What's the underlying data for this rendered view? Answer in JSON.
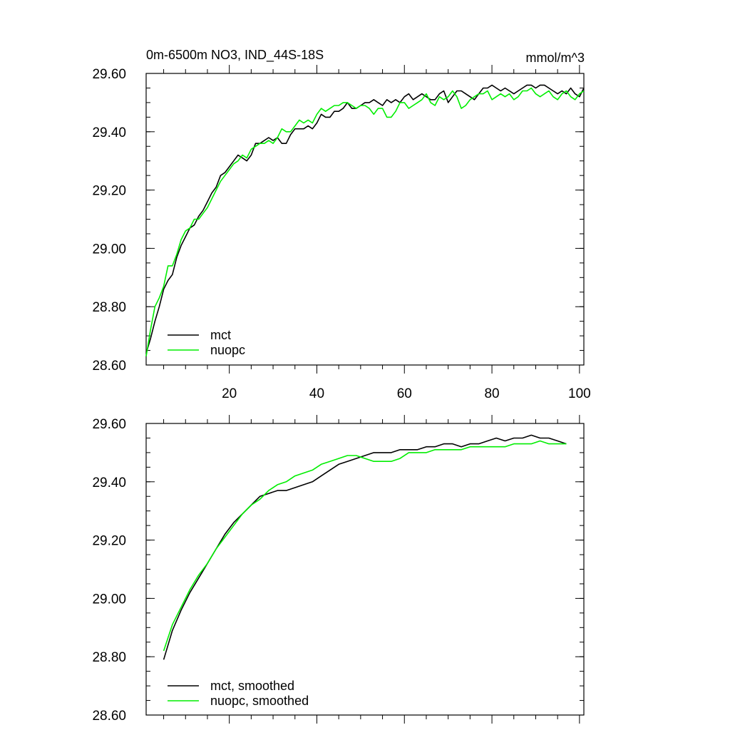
{
  "colors": {
    "mct": "#000000",
    "nuopc": "#00ee00"
  },
  "chart_data": [
    {
      "type": "line",
      "title": "0m-6500m NO3, IND_44S-18S",
      "units": "mmol/m^3",
      "xlim": [
        1,
        101
      ],
      "ylim": [
        28.6,
        29.6
      ],
      "xticks": [
        20,
        40,
        60,
        80,
        100
      ],
      "yticks": [
        28.6,
        28.8,
        29.0,
        29.2,
        29.4,
        29.6
      ],
      "ytick_labels": [
        "28.60",
        "28.80",
        "29.00",
        "29.20",
        "29.40",
        "29.60"
      ],
      "xtick_labels": [
        "20",
        "40",
        "60",
        "80",
        "100"
      ],
      "legend_position": "bottom-left",
      "grid": false,
      "series": [
        {
          "name": "mct",
          "color": "#000000",
          "x": [
            1,
            2,
            3,
            4,
            5,
            6,
            7,
            8,
            9,
            10,
            11,
            12,
            13,
            14,
            15,
            16,
            17,
            18,
            19,
            20,
            21,
            22,
            23,
            24,
            25,
            26,
            27,
            28,
            29,
            30,
            31,
            32,
            33,
            34,
            35,
            36,
            37,
            38,
            39,
            40,
            41,
            42,
            43,
            44,
            45,
            46,
            47,
            48,
            49,
            50,
            51,
            52,
            53,
            54,
            55,
            56,
            57,
            58,
            59,
            60,
            61,
            62,
            63,
            64,
            65,
            66,
            67,
            68,
            69,
            70,
            71,
            72,
            73,
            74,
            75,
            76,
            77,
            78,
            79,
            80,
            81,
            82,
            83,
            84,
            85,
            86,
            87,
            88,
            89,
            90,
            91,
            92,
            93,
            94,
            95,
            96,
            97,
            98,
            99,
            100,
            101
          ],
          "y": [
            28.64,
            28.69,
            28.75,
            28.8,
            28.86,
            28.89,
            28.91,
            28.97,
            29.01,
            29.04,
            29.07,
            29.08,
            29.11,
            29.13,
            29.16,
            29.19,
            29.21,
            29.25,
            29.26,
            29.28,
            29.3,
            29.32,
            29.31,
            29.3,
            29.32,
            29.36,
            29.36,
            29.37,
            29.38,
            29.37,
            29.38,
            29.36,
            29.36,
            29.39,
            29.41,
            29.41,
            29.41,
            29.42,
            29.41,
            29.43,
            29.46,
            29.45,
            29.45,
            29.47,
            29.47,
            29.48,
            29.5,
            29.48,
            29.48,
            29.49,
            29.5,
            29.5,
            29.51,
            29.5,
            29.49,
            29.51,
            29.5,
            29.51,
            29.5,
            29.52,
            29.53,
            29.51,
            29.52,
            29.53,
            29.52,
            29.51,
            29.51,
            29.53,
            29.54,
            29.5,
            29.52,
            29.54,
            29.54,
            29.53,
            29.52,
            29.51,
            29.53,
            29.55,
            29.55,
            29.56,
            29.55,
            29.54,
            29.55,
            29.54,
            29.53,
            29.54,
            29.55,
            29.56,
            29.56,
            29.55,
            29.56,
            29.56,
            29.55,
            29.54,
            29.53,
            29.54,
            29.53,
            29.55,
            29.53,
            29.52,
            29.55
          ]
        },
        {
          "name": "nuopc",
          "color": "#00ee00",
          "x": [
            1,
            2,
            3,
            4,
            5,
            6,
            7,
            8,
            9,
            10,
            11,
            12,
            13,
            14,
            15,
            16,
            17,
            18,
            19,
            20,
            21,
            22,
            23,
            24,
            25,
            26,
            27,
            28,
            29,
            30,
            31,
            32,
            33,
            34,
            35,
            36,
            37,
            38,
            39,
            40,
            41,
            42,
            43,
            44,
            45,
            46,
            47,
            48,
            49,
            50,
            51,
            52,
            53,
            54,
            55,
            56,
            57,
            58,
            59,
            60,
            61,
            62,
            63,
            64,
            65,
            66,
            67,
            68,
            69,
            70,
            71,
            72,
            73,
            74,
            75,
            76,
            77,
            78,
            79,
            80,
            81,
            82,
            83,
            84,
            85,
            86,
            87,
            88,
            89,
            90,
            91,
            92,
            93,
            94,
            95,
            96,
            97,
            98,
            99,
            100,
            101
          ],
          "y": [
            28.63,
            28.72,
            28.8,
            28.83,
            28.87,
            28.94,
            28.94,
            28.98,
            29.03,
            29.06,
            29.07,
            29.1,
            29.1,
            29.12,
            29.14,
            29.17,
            29.2,
            29.23,
            29.25,
            29.27,
            29.29,
            29.3,
            29.32,
            29.31,
            29.34,
            29.35,
            29.36,
            29.36,
            29.37,
            29.36,
            29.38,
            29.41,
            29.4,
            29.4,
            29.42,
            29.44,
            29.43,
            29.44,
            29.43,
            29.46,
            29.48,
            29.47,
            29.48,
            29.49,
            29.49,
            29.5,
            29.5,
            29.49,
            29.48,
            29.49,
            29.49,
            29.48,
            29.46,
            29.48,
            29.48,
            29.45,
            29.45,
            29.47,
            29.5,
            29.5,
            29.48,
            29.49,
            29.5,
            29.51,
            29.53,
            29.5,
            29.49,
            29.52,
            29.51,
            29.52,
            29.54,
            29.52,
            29.48,
            29.49,
            29.51,
            29.52,
            29.53,
            29.53,
            29.54,
            29.51,
            29.52,
            29.53,
            29.52,
            29.53,
            29.51,
            29.52,
            29.54,
            29.54,
            29.55,
            29.53,
            29.52,
            29.53,
            29.54,
            29.52,
            29.51,
            29.53,
            29.54,
            29.52,
            29.51,
            29.53,
            29.54
          ]
        }
      ]
    },
    {
      "type": "line",
      "xlim": [
        1,
        101
      ],
      "ylim": [
        28.6,
        29.6
      ],
      "xticks": [
        20,
        40,
        60,
        80,
        100
      ],
      "yticks": [
        28.6,
        28.8,
        29.0,
        29.2,
        29.4,
        29.6
      ],
      "ytick_labels": [
        "28.60",
        "28.80",
        "29.00",
        "29.20",
        "29.40",
        "29.60"
      ],
      "legend_position": "bottom-left",
      "grid": false,
      "series": [
        {
          "name": "mct, smoothed",
          "color": "#000000",
          "x": [
            5,
            7,
            9,
            11,
            13,
            15,
            17,
            19,
            21,
            23,
            25,
            27,
            29,
            31,
            33,
            35,
            37,
            39,
            41,
            43,
            45,
            47,
            49,
            51,
            53,
            55,
            57,
            59,
            61,
            63,
            65,
            67,
            69,
            71,
            73,
            75,
            77,
            79,
            81,
            83,
            85,
            87,
            89,
            91,
            93,
            95,
            97
          ],
          "y": [
            28.79,
            28.89,
            28.96,
            29.02,
            29.07,
            29.12,
            29.17,
            29.22,
            29.26,
            29.29,
            29.32,
            29.35,
            29.36,
            29.37,
            29.37,
            29.38,
            29.39,
            29.4,
            29.42,
            29.44,
            29.46,
            29.47,
            29.48,
            29.49,
            29.5,
            29.5,
            29.5,
            29.51,
            29.51,
            29.51,
            29.52,
            29.52,
            29.53,
            29.53,
            29.52,
            29.53,
            29.53,
            29.54,
            29.55,
            29.54,
            29.55,
            29.55,
            29.56,
            29.55,
            29.55,
            29.54,
            29.53
          ]
        },
        {
          "name": "nuopc, smoothed",
          "color": "#00ee00",
          "x": [
            5,
            7,
            9,
            11,
            13,
            15,
            17,
            19,
            21,
            23,
            25,
            27,
            29,
            31,
            33,
            35,
            37,
            39,
            41,
            43,
            45,
            47,
            49,
            51,
            53,
            55,
            57,
            59,
            61,
            63,
            65,
            67,
            69,
            71,
            73,
            75,
            77,
            79,
            81,
            83,
            85,
            87,
            89,
            91,
            93,
            95,
            97
          ],
          "y": [
            28.82,
            28.91,
            28.97,
            29.03,
            29.08,
            29.12,
            29.17,
            29.21,
            29.25,
            29.29,
            29.32,
            29.34,
            29.37,
            29.39,
            29.4,
            29.42,
            29.43,
            29.44,
            29.46,
            29.47,
            29.48,
            29.49,
            29.49,
            29.48,
            29.47,
            29.47,
            29.47,
            29.48,
            29.5,
            29.5,
            29.5,
            29.51,
            29.51,
            29.51,
            29.51,
            29.52,
            29.52,
            29.52,
            29.52,
            29.52,
            29.53,
            29.53,
            29.53,
            29.54,
            29.53,
            29.53,
            29.53
          ]
        }
      ]
    }
  ]
}
